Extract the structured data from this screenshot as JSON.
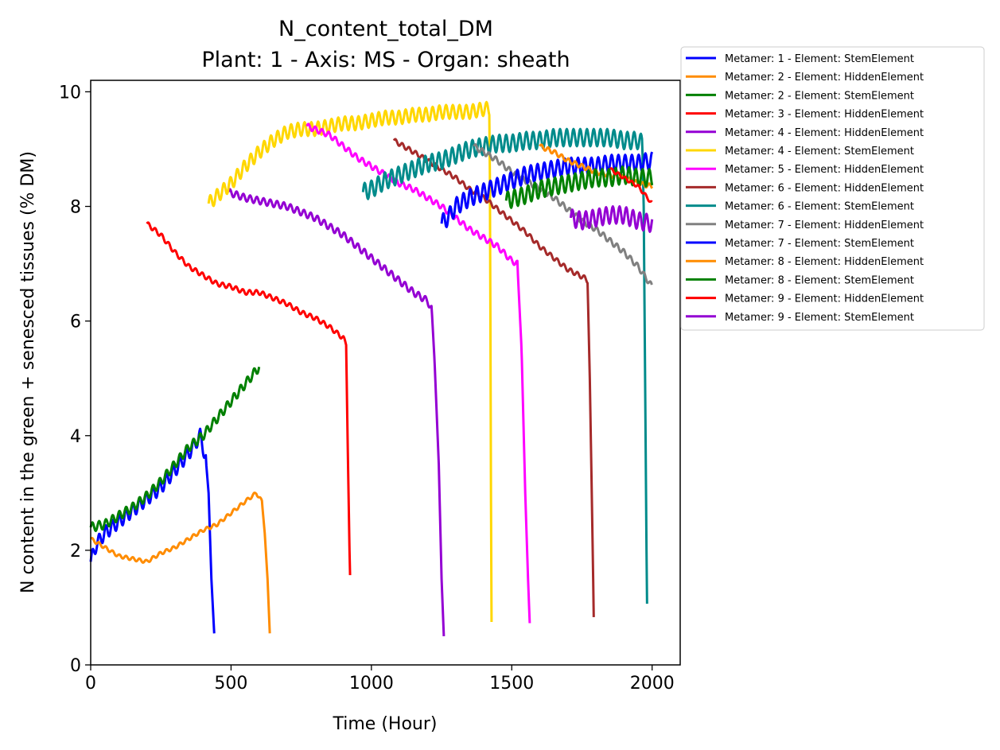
{
  "chart_data": {
    "type": "line",
    "title": "N_content_total_DM",
    "subtitle": "Plant: 1 - Axis: MS - Organ: sheath",
    "xlabel": "Time (Hour)",
    "ylabel": "N content in the green + senesced tissues (% DM)",
    "xlim": [
      0,
      2100
    ],
    "ylim": [
      0,
      10.2
    ],
    "xticks": [
      0,
      500,
      1000,
      1500,
      2000
    ],
    "yticks": [
      0,
      2,
      4,
      6,
      8,
      10
    ],
    "legend_position": "outside-right-top",
    "series": [
      {
        "name": "Metamer: 1 - Element: StemElement",
        "color": "#0000ff",
        "points": [
          [
            0,
            1.8
          ],
          [
            20,
            2.1
          ],
          [
            50,
            2.3
          ],
          [
            100,
            2.5
          ],
          [
            150,
            2.7
          ],
          [
            200,
            2.9
          ],
          [
            250,
            3.1
          ],
          [
            300,
            3.4
          ],
          [
            350,
            3.7
          ],
          [
            390,
            4.0
          ],
          [
            410,
            3.6
          ],
          [
            420,
            3.0
          ],
          [
            430,
            1.5
          ],
          [
            440,
            0.55
          ]
        ],
        "osc": 0.12,
        "period": 24
      },
      {
        "name": "Metamer: 2 - Element: HiddenElement",
        "color": "#ff8c00",
        "points": [
          [
            0,
            2.2
          ],
          [
            50,
            2.05
          ],
          [
            100,
            1.9
          ],
          [
            150,
            1.85
          ],
          [
            200,
            1.8
          ],
          [
            250,
            1.95
          ],
          [
            300,
            2.05
          ],
          [
            350,
            2.2
          ],
          [
            400,
            2.35
          ],
          [
            450,
            2.45
          ],
          [
            500,
            2.65
          ],
          [
            550,
            2.85
          ],
          [
            590,
            3.0
          ],
          [
            610,
            2.85
          ],
          [
            620,
            2.3
          ],
          [
            630,
            1.5
          ],
          [
            638,
            0.55
          ]
        ],
        "osc": 0.03,
        "period": 24
      },
      {
        "name": "Metamer: 2 - Element: StemElement",
        "color": "#008000",
        "points": [
          [
            0,
            2.4
          ],
          [
            50,
            2.45
          ],
          [
            100,
            2.6
          ],
          [
            150,
            2.75
          ],
          [
            200,
            2.95
          ],
          [
            250,
            3.2
          ],
          [
            300,
            3.5
          ],
          [
            350,
            3.8
          ],
          [
            400,
            4.0
          ],
          [
            450,
            4.3
          ],
          [
            500,
            4.6
          ],
          [
            550,
            4.9
          ],
          [
            600,
            5.2
          ]
        ],
        "osc": 0.08,
        "period": 24
      },
      {
        "name": "Metamer: 3 - Element: HiddenElement",
        "color": "#ff0000",
        "points": [
          [
            200,
            7.7
          ],
          [
            250,
            7.5
          ],
          [
            300,
            7.2
          ],
          [
            350,
            6.95
          ],
          [
            400,
            6.8
          ],
          [
            450,
            6.65
          ],
          [
            500,
            6.6
          ],
          [
            550,
            6.5
          ],
          [
            600,
            6.5
          ],
          [
            650,
            6.4
          ],
          [
            700,
            6.3
          ],
          [
            750,
            6.15
          ],
          [
            800,
            6.05
          ],
          [
            850,
            5.9
          ],
          [
            900,
            5.7
          ],
          [
            910,
            5.6
          ],
          [
            915,
            4.0
          ],
          [
            922,
            2.0
          ],
          [
            925,
            1.35
          ]
        ],
        "osc": 0.04,
        "period": 24
      },
      {
        "name": "Metamer: 4 - Element: HiddenElement",
        "color": "#9400d3",
        "points": [
          [
            490,
            8.25
          ],
          [
            550,
            8.15
          ],
          [
            600,
            8.1
          ],
          [
            650,
            8.05
          ],
          [
            700,
            8.0
          ],
          [
            750,
            7.9
          ],
          [
            800,
            7.8
          ],
          [
            850,
            7.65
          ],
          [
            900,
            7.5
          ],
          [
            950,
            7.3
          ],
          [
            1000,
            7.1
          ],
          [
            1050,
            6.9
          ],
          [
            1100,
            6.7
          ],
          [
            1150,
            6.5
          ],
          [
            1200,
            6.35
          ],
          [
            1215,
            6.2
          ],
          [
            1225,
            5.3
          ],
          [
            1240,
            3.5
          ],
          [
            1250,
            1.5
          ],
          [
            1258,
            0.5
          ]
        ],
        "osc": 0.06,
        "period": 24
      },
      {
        "name": "Metamer: 4 - Element: StemElement",
        "color": "#ffd700",
        "points": [
          [
            420,
            8.05
          ],
          [
            500,
            8.4
          ],
          [
            550,
            8.7
          ],
          [
            600,
            8.95
          ],
          [
            650,
            9.15
          ],
          [
            700,
            9.3
          ],
          [
            750,
            9.35
          ],
          [
            800,
            9.35
          ],
          [
            850,
            9.4
          ],
          [
            900,
            9.45
          ],
          [
            950,
            9.45
          ],
          [
            1000,
            9.5
          ],
          [
            1050,
            9.55
          ],
          [
            1100,
            9.55
          ],
          [
            1150,
            9.6
          ],
          [
            1200,
            9.6
          ],
          [
            1250,
            9.65
          ],
          [
            1300,
            9.65
          ],
          [
            1350,
            9.65
          ],
          [
            1400,
            9.7
          ],
          [
            1420,
            9.7
          ],
          [
            1423,
            8.0
          ],
          [
            1425,
            4.0
          ],
          [
            1428,
            0.75
          ]
        ],
        "osc": 0.12,
        "period": 24
      },
      {
        "name": "Metamer: 5 - Element: HiddenElement",
        "color": "#ff00ff",
        "points": [
          [
            770,
            9.4
          ],
          [
            850,
            9.25
          ],
          [
            900,
            9.05
          ],
          [
            950,
            8.85
          ],
          [
            1000,
            8.7
          ],
          [
            1050,
            8.55
          ],
          [
            1100,
            8.4
          ],
          [
            1150,
            8.3
          ],
          [
            1200,
            8.15
          ],
          [
            1250,
            8.0
          ],
          [
            1300,
            7.8
          ],
          [
            1350,
            7.6
          ],
          [
            1400,
            7.45
          ],
          [
            1450,
            7.3
          ],
          [
            1500,
            7.05
          ],
          [
            1520,
            7.0
          ],
          [
            1535,
            5.5
          ],
          [
            1548,
            3.0
          ],
          [
            1558,
            1.5
          ],
          [
            1565,
            0.6
          ]
        ],
        "osc": 0.05,
        "period": 24
      },
      {
        "name": "Metamer: 6 - Element: HiddenElement",
        "color": "#a52a2a",
        "points": [
          [
            1080,
            9.15
          ],
          [
            1150,
            8.95
          ],
          [
            1200,
            8.8
          ],
          [
            1250,
            8.65
          ],
          [
            1300,
            8.5
          ],
          [
            1350,
            8.3
          ],
          [
            1400,
            8.15
          ],
          [
            1450,
            7.95
          ],
          [
            1500,
            7.75
          ],
          [
            1550,
            7.55
          ],
          [
            1600,
            7.3
          ],
          [
            1650,
            7.1
          ],
          [
            1700,
            6.9
          ],
          [
            1760,
            6.75
          ],
          [
            1770,
            6.7
          ],
          [
            1778,
            5.0
          ],
          [
            1785,
            3.0
          ],
          [
            1790,
            1.5
          ],
          [
            1793,
            0.5
          ]
        ],
        "osc": 0.04,
        "period": 24
      },
      {
        "name": "Metamer: 6 - Element: StemElement",
        "color": "#008b8b",
        "points": [
          [
            970,
            8.25
          ],
          [
            1000,
            8.3
          ],
          [
            1050,
            8.45
          ],
          [
            1100,
            8.55
          ],
          [
            1150,
            8.65
          ],
          [
            1200,
            8.75
          ],
          [
            1250,
            8.8
          ],
          [
            1300,
            8.9
          ],
          [
            1350,
            9.0
          ],
          [
            1400,
            9.05
          ],
          [
            1450,
            9.1
          ],
          [
            1500,
            9.1
          ],
          [
            1550,
            9.15
          ],
          [
            1600,
            9.15
          ],
          [
            1650,
            9.2
          ],
          [
            1700,
            9.2
          ],
          [
            1750,
            9.2
          ],
          [
            1800,
            9.2
          ],
          [
            1850,
            9.2
          ],
          [
            1900,
            9.15
          ],
          [
            1950,
            9.15
          ],
          [
            1965,
            9.1
          ],
          [
            1970,
            8.0
          ],
          [
            1975,
            5.0
          ],
          [
            1980,
            2.0
          ],
          [
            1983,
            0.6
          ]
        ],
        "osc": 0.15,
        "period": 24
      },
      {
        "name": "Metamer: 7 - Element: HiddenElement",
        "color": "#808080",
        "points": [
          [
            1365,
            9.05
          ],
          [
            1400,
            8.95
          ],
          [
            1450,
            8.8
          ],
          [
            1500,
            8.6
          ],
          [
            1550,
            8.45
          ],
          [
            1600,
            8.3
          ],
          [
            1650,
            8.15
          ],
          [
            1700,
            7.95
          ],
          [
            1750,
            7.75
          ],
          [
            1800,
            7.6
          ],
          [
            1850,
            7.4
          ],
          [
            1900,
            7.2
          ],
          [
            1950,
            6.95
          ],
          [
            2000,
            6.6
          ]
        ],
        "osc": 0.05,
        "period": 24
      },
      {
        "name": "Metamer: 7 - Element: StemElement",
        "color": "#0000ff",
        "points": [
          [
            1250,
            7.7
          ],
          [
            1280,
            7.85
          ],
          [
            1300,
            8.0
          ],
          [
            1350,
            8.15
          ],
          [
            1400,
            8.25
          ],
          [
            1450,
            8.35
          ],
          [
            1500,
            8.45
          ],
          [
            1550,
            8.55
          ],
          [
            1600,
            8.6
          ],
          [
            1650,
            8.65
          ],
          [
            1700,
            8.7
          ],
          [
            1750,
            8.7
          ],
          [
            1800,
            8.7
          ],
          [
            1850,
            8.75
          ],
          [
            1900,
            8.75
          ],
          [
            1950,
            8.75
          ],
          [
            2000,
            8.8
          ]
        ],
        "osc": 0.15,
        "period": 24
      },
      {
        "name": "Metamer: 8 - Element: HiddenElement",
        "color": "#ff8c00",
        "points": [
          [
            1600,
            9.05
          ],
          [
            1650,
            8.95
          ],
          [
            1700,
            8.8
          ],
          [
            1750,
            8.7
          ],
          [
            1800,
            8.6
          ],
          [
            1850,
            8.55
          ],
          [
            1900,
            8.5
          ],
          [
            1950,
            8.4
          ],
          [
            2000,
            8.35
          ]
        ],
        "osc": 0.04,
        "period": 24
      },
      {
        "name": "Metamer: 8 - Element: StemElement",
        "color": "#008000",
        "points": [
          [
            1480,
            8.1
          ],
          [
            1550,
            8.2
          ],
          [
            1600,
            8.3
          ],
          [
            1650,
            8.35
          ],
          [
            1700,
            8.4
          ],
          [
            1750,
            8.45
          ],
          [
            1800,
            8.5
          ],
          [
            1850,
            8.5
          ],
          [
            1900,
            8.55
          ],
          [
            1950,
            8.5
          ],
          [
            2000,
            8.5
          ]
        ],
        "osc": 0.15,
        "period": 24
      },
      {
        "name": "Metamer: 9 - Element: HiddenElement",
        "color": "#ff0000",
        "points": [
          [
            1850,
            8.65
          ],
          [
            1900,
            8.5
          ],
          [
            1950,
            8.35
          ],
          [
            2000,
            8.05
          ]
        ],
        "osc": 0.03,
        "period": 24
      },
      {
        "name": "Metamer: 9 - Element: StemElement",
        "color": "#9400d3",
        "points": [
          [
            1710,
            7.8
          ],
          [
            1750,
            7.75
          ],
          [
            1800,
            7.8
          ],
          [
            1850,
            7.85
          ],
          [
            1900,
            7.85
          ],
          [
            1950,
            7.75
          ],
          [
            2000,
            7.7
          ]
        ],
        "osc": 0.15,
        "period": 24
      }
    ]
  }
}
